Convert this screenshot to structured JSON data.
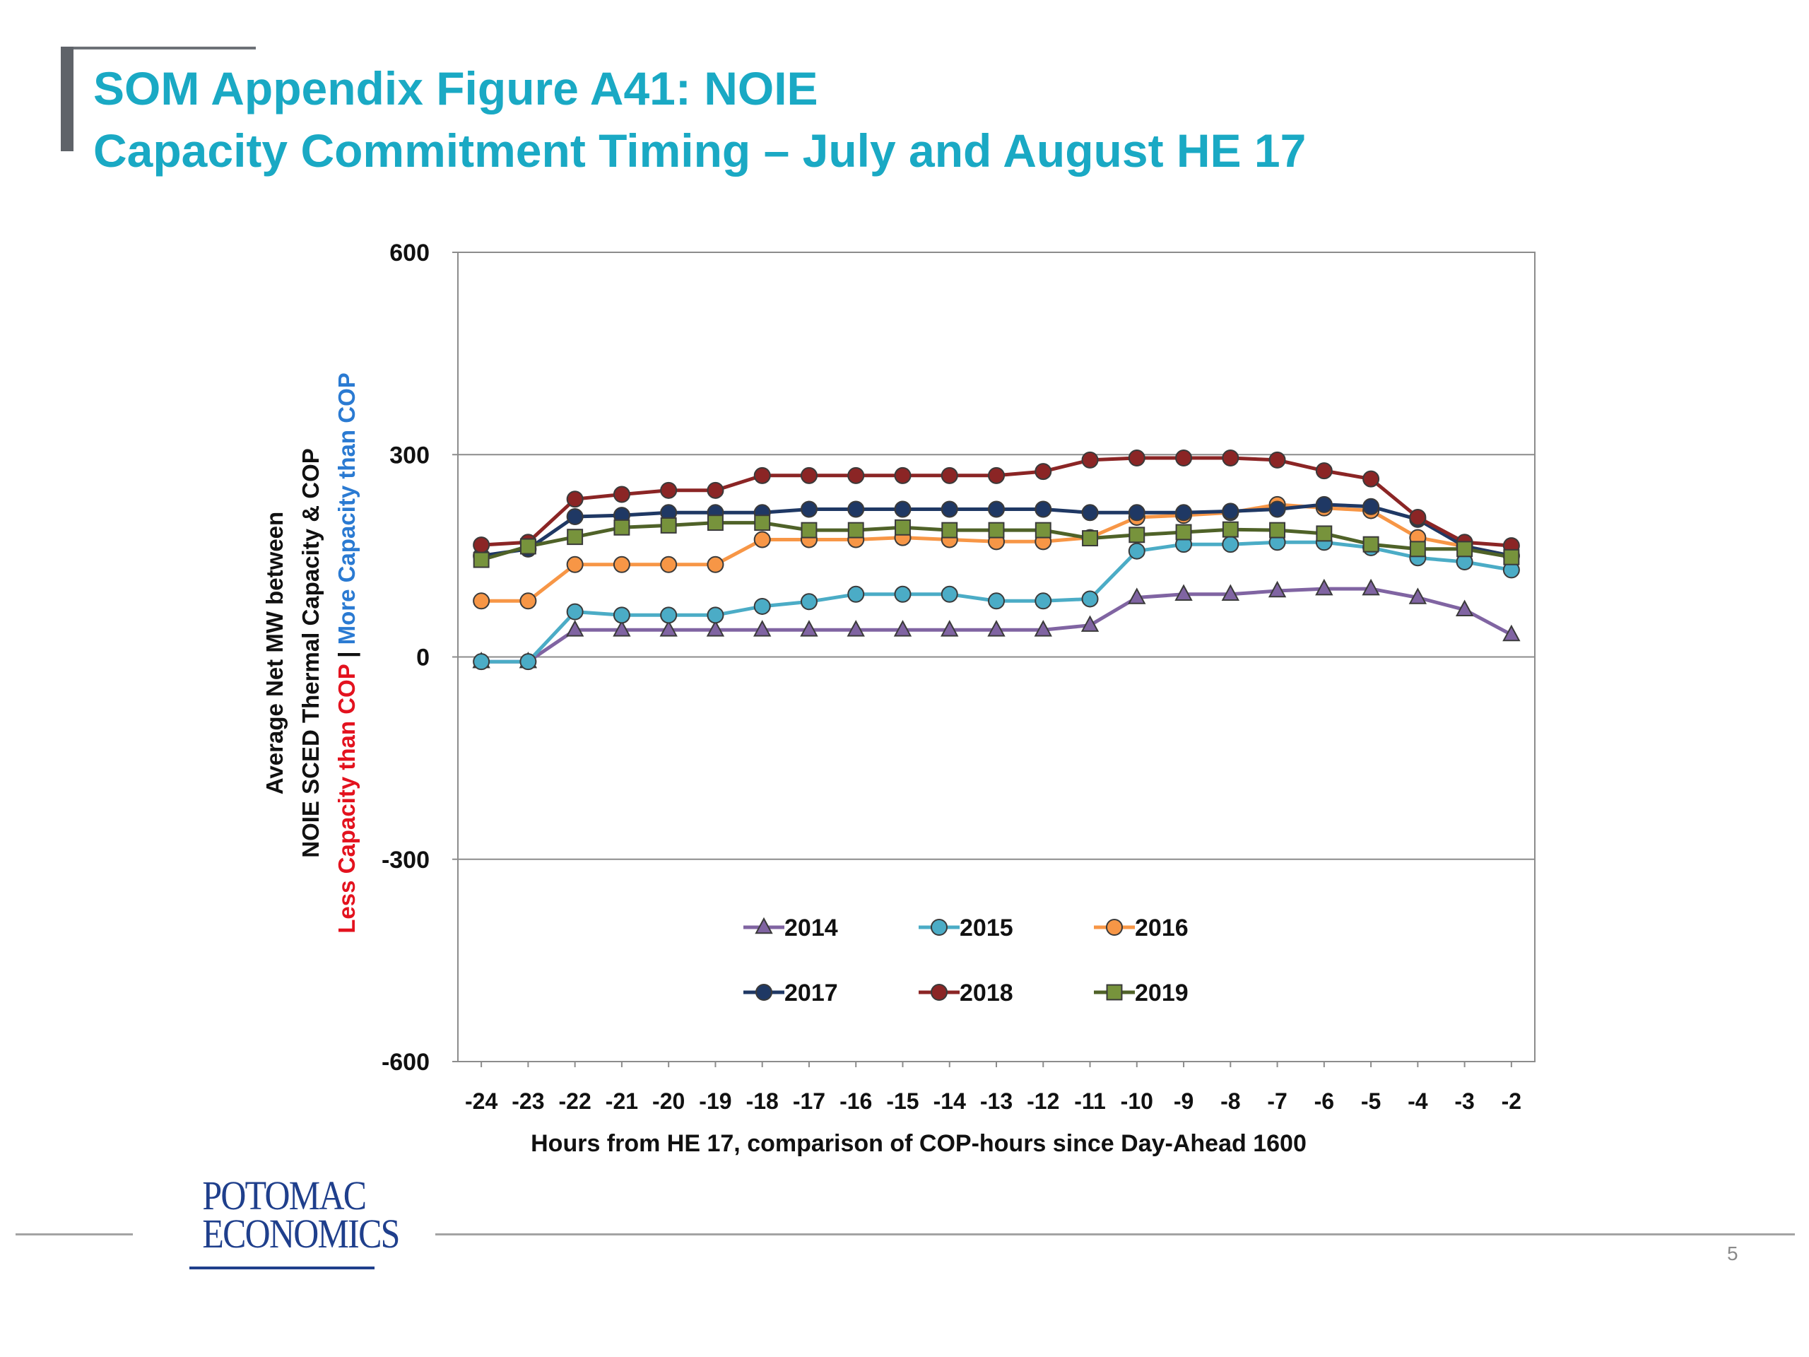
{
  "slide": {
    "title_line_1": "SOM Appendix Figure A41:  NOIE",
    "title_line_2": "Capacity Commitment Timing – July and August HE 17",
    "page_number": "5",
    "logo": {
      "line1": "POTOMAC",
      "line2": "ECONOMICS"
    },
    "colors": {
      "title": "#1aa9c4",
      "logo": "#1f3f8c",
      "rule": "#a3a3a3"
    }
  },
  "chart_data": {
    "type": "line",
    "title": "",
    "xlabel": "Hours from HE 17, comparison  of COP-hours  since Day-Ahead  1600",
    "ylabel": {
      "line1": "Average Net MW between",
      "line2": "NOIE SCED Thermal Capacity & COP",
      "line3_left": "Less Capacity than COP",
      "line3_sep": " | ",
      "line3_right": "More Capacity  than COP",
      "line3_left_color": "#e3121e",
      "line3_right_color": "#2a7ad2"
    },
    "ylim": [
      -600,
      600
    ],
    "yticks": [
      -600,
      -300,
      0,
      300,
      600
    ],
    "ytick_labels": [
      "-600",
      "-300",
      "0",
      "300",
      "600"
    ],
    "grid": "horizontal",
    "legend_position": "lower-center",
    "x": [
      -24,
      -23,
      -22,
      -21,
      -20,
      -19,
      -18,
      -17,
      -16,
      -15,
      -14,
      -13,
      -12,
      -11,
      -10,
      -9,
      -8,
      -7,
      -6,
      -5,
      -4,
      -3,
      -2
    ],
    "xtick_labels": [
      "-24",
      "-23",
      "-22",
      "-21",
      "-20",
      "-19",
      "-18",
      "-17",
      "-16",
      "-15",
      "-14",
      "-13",
      "-12",
      "-11",
      "-10",
      "-9",
      "-8",
      "-7",
      "-6",
      "-5",
      "-4",
      "-3",
      "-2"
    ],
    "series": [
      {
        "name": "2014",
        "color": "#8064a2",
        "marker": "triangle",
        "values": [
          -7,
          -7,
          40,
          40,
          40,
          40,
          40,
          40,
          40,
          40,
          40,
          40,
          40,
          47,
          88,
          93,
          93,
          98,
          101,
          101,
          88,
          70,
          33
        ]
      },
      {
        "name": "2015",
        "color": "#4bacc6",
        "marker": "circle",
        "values": [
          -7,
          -7,
          67,
          62,
          62,
          62,
          75,
          82,
          93,
          93,
          93,
          83,
          83,
          86,
          157,
          167,
          167,
          170,
          170,
          162,
          147,
          141,
          129
        ]
      },
      {
        "name": "2016",
        "color": "#f79646",
        "marker": "circle",
        "values": [
          83,
          83,
          137,
          137,
          137,
          137,
          174,
          174,
          174,
          177,
          174,
          171,
          171,
          177,
          207,
          210,
          214,
          226,
          221,
          217,
          177,
          164,
          150
        ]
      },
      {
        "name": "2017",
        "color": "#1f3864",
        "marker": "circle",
        "values": [
          150,
          160,
          208,
          210,
          214,
          214,
          214,
          219,
          219,
          219,
          219,
          219,
          219,
          214,
          214,
          214,
          216,
          219,
          226,
          223,
          204,
          164,
          150
        ]
      },
      {
        "name": "2018",
        "color": "#8b2525",
        "marker": "circle",
        "values": [
          166,
          170,
          234,
          241,
          247,
          247,
          269,
          269,
          269,
          269,
          269,
          269,
          275,
          292,
          295,
          295,
          295,
          292,
          276,
          264,
          207,
          170,
          165
        ]
      },
      {
        "name": "2019",
        "color": "#4f6228",
        "fill": "#77933c",
        "marker": "square",
        "values": [
          144,
          164,
          178,
          192,
          195,
          199,
          199,
          188,
          188,
          192,
          188,
          188,
          188,
          176,
          181,
          185,
          189,
          188,
          183,
          167,
          160,
          160,
          148
        ]
      }
    ]
  }
}
